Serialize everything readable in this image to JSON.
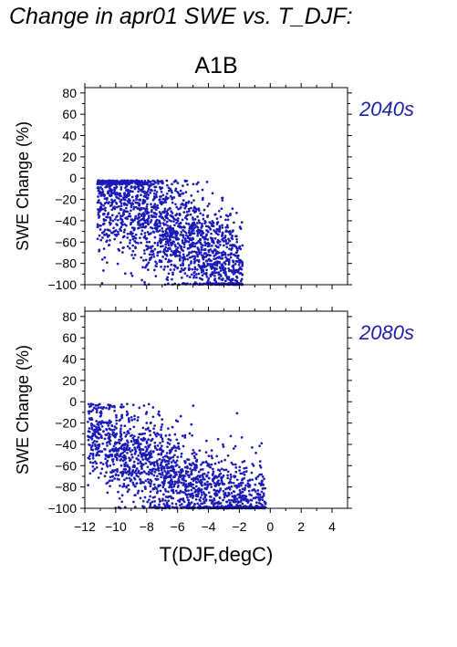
{
  "page": {
    "title": "Change in apr01 SWE vs. T_DJF:"
  },
  "colors": {
    "points": "#1a1ab8",
    "period_label": "#1f1fa8",
    "axis": "#000000"
  },
  "chart_data": [
    {
      "type": "scatter",
      "title": "A1B",
      "period_label": "2040s",
      "xlabel": "",
      "ylabel": "SWE Change (%)",
      "xlim": [
        -12,
        5
      ],
      "ylim": [
        -100,
        85
      ],
      "xticks": [
        -12,
        -10,
        -8,
        -6,
        -4,
        -2,
        0,
        2,
        4
      ],
      "yticks": [
        -100,
        -80,
        -60,
        -40,
        -20,
        0,
        20,
        40,
        60,
        80
      ],
      "x_tick_labels_shown": false,
      "grid": false,
      "cloud": {
        "count": 1900,
        "x_range": [
          -11.2,
          -1.8
        ],
        "trend_at_x": [
          [
            -11,
            -15
          ],
          [
            -9,
            -25
          ],
          [
            -7,
            -45
          ],
          [
            -5,
            -60
          ],
          [
            -3,
            -80
          ],
          [
            -2,
            -95
          ]
        ],
        "spread": 25,
        "y_min": -100
      }
    },
    {
      "type": "scatter",
      "title": "",
      "period_label": "2080s",
      "xlabel": "T(DJF,degC)",
      "ylabel": "SWE Change (%)",
      "xlim": [
        -12,
        5
      ],
      "ylim": [
        -100,
        85
      ],
      "xticks": [
        -12,
        -10,
        -8,
        -6,
        -4,
        -2,
        0,
        2,
        4
      ],
      "yticks": [
        -100,
        -80,
        -60,
        -40,
        -20,
        0,
        20,
        40,
        60,
        80
      ],
      "x_tick_labels_shown": true,
      "grid": false,
      "cloud": {
        "count": 1800,
        "x_range": [
          -11.8,
          -0.3
        ],
        "trend_at_x": [
          [
            -11,
            -35
          ],
          [
            -9,
            -50
          ],
          [
            -7,
            -65
          ],
          [
            -5,
            -80
          ],
          [
            -3,
            -92
          ],
          [
            -1,
            -99
          ]
        ],
        "spread": 22,
        "y_min": -100
      }
    }
  ]
}
